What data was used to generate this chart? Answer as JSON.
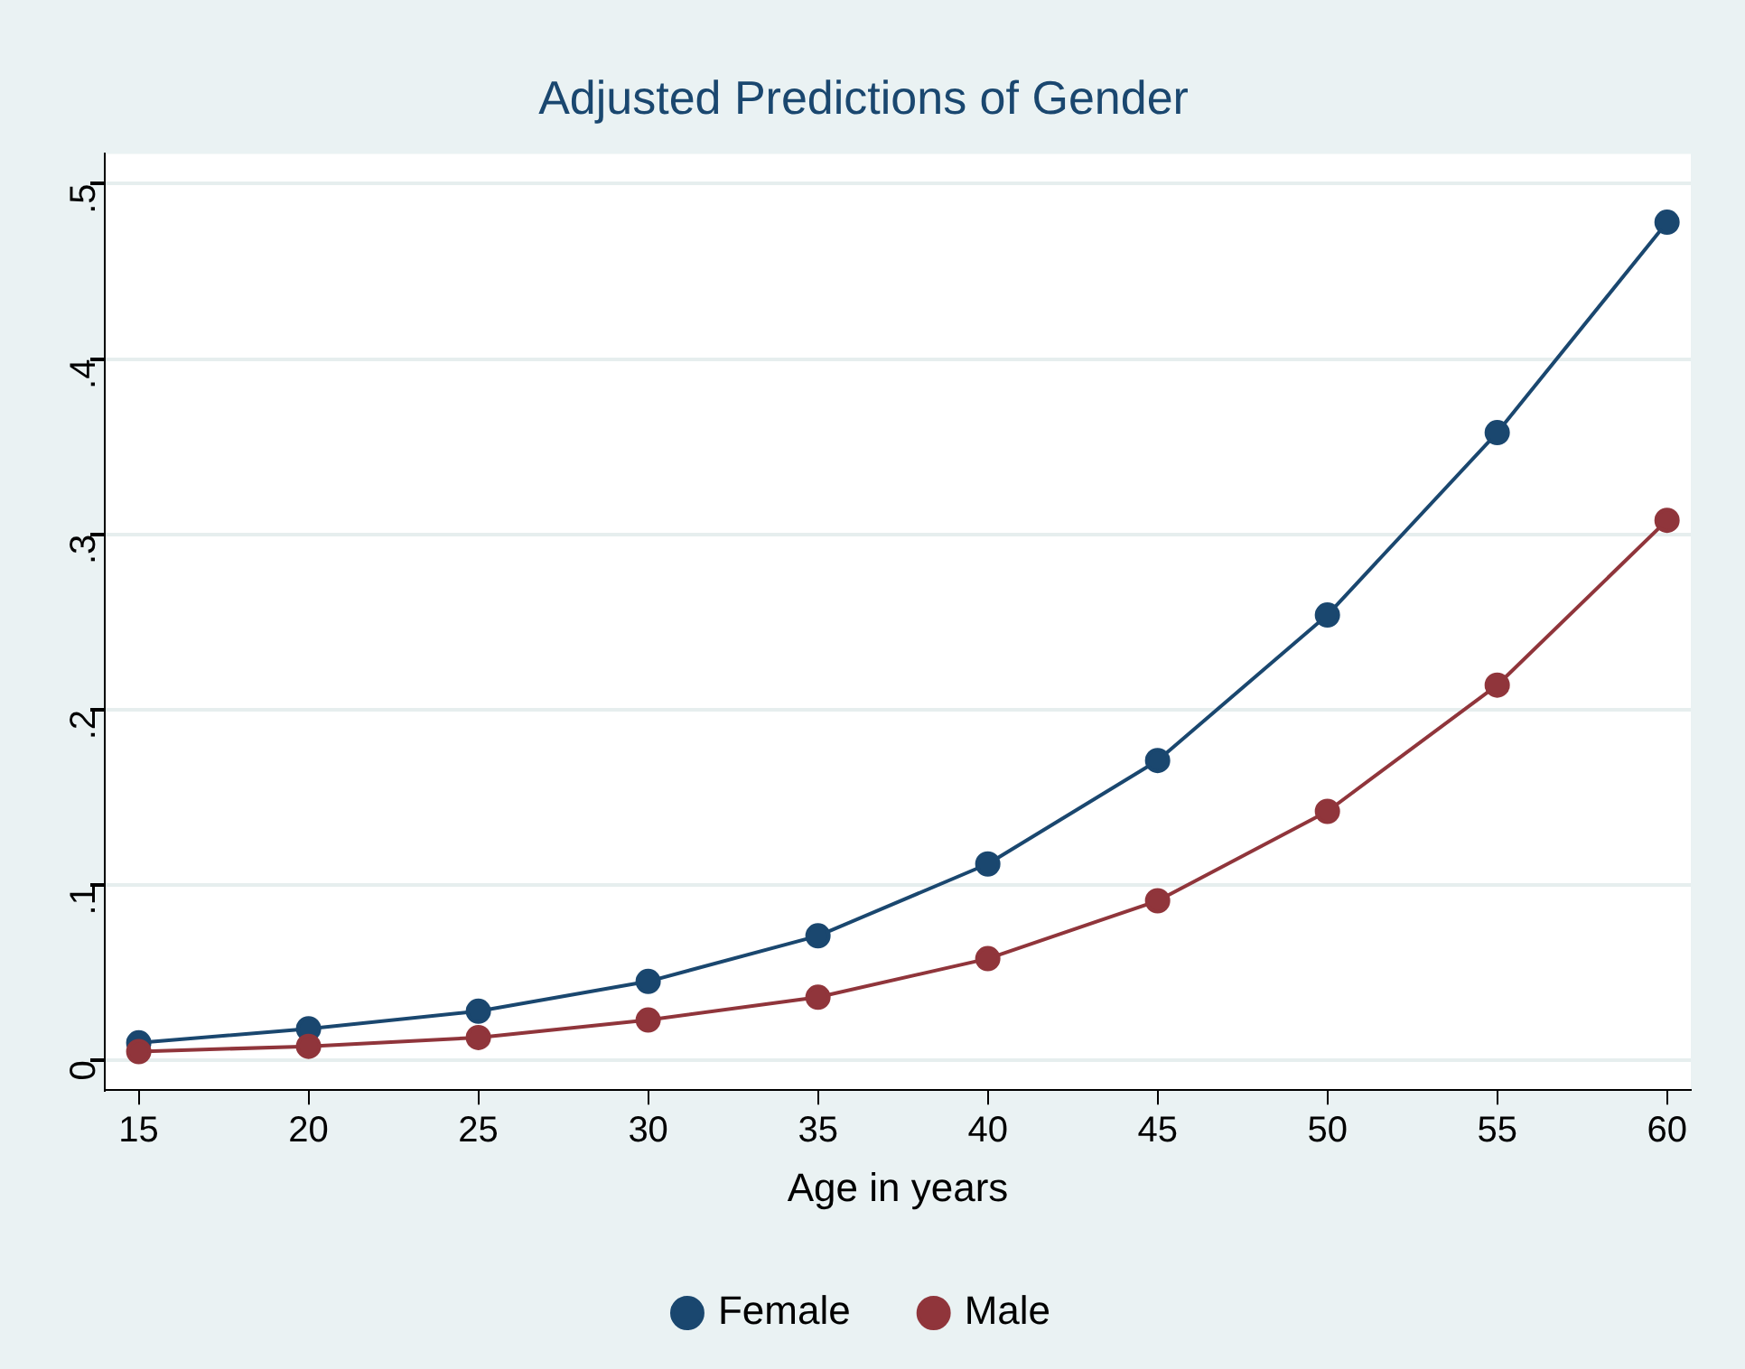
{
  "chart_data": {
    "type": "line",
    "title": "Adjusted Predictions of Gender",
    "xlabel": "Age in years",
    "x": [
      15,
      20,
      25,
      30,
      35,
      40,
      45,
      50,
      55,
      60
    ],
    "series": [
      {
        "name": "Female",
        "color": "#1a476f",
        "values": [
          0.01,
          0.018,
          0.028,
          0.045,
          0.071,
          0.112,
          0.171,
          0.254,
          0.358,
          0.478
        ]
      },
      {
        "name": "Male",
        "color": "#90353b",
        "values": [
          0.005,
          0.008,
          0.013,
          0.023,
          0.036,
          0.058,
          0.091,
          0.142,
          0.214,
          0.308
        ]
      }
    ],
    "xlim": [
      14,
      60.7
    ],
    "xticks": [
      15,
      20,
      25,
      30,
      35,
      40,
      45,
      50,
      55,
      60
    ],
    "ylim": [
      -0.017,
      0.517
    ],
    "yticks": [
      {
        "value": 0,
        "label": "0"
      },
      {
        "value": 0.1,
        "label": ".1"
      },
      {
        "value": 0.2,
        "label": ".2"
      },
      {
        "value": 0.3,
        "label": ".3"
      },
      {
        "value": 0.4,
        "label": ".4"
      },
      {
        "value": 0.5,
        "label": ".5"
      }
    ],
    "grid": "y",
    "legend": "bottom",
    "marker": "circle",
    "line_style": "solid"
  }
}
